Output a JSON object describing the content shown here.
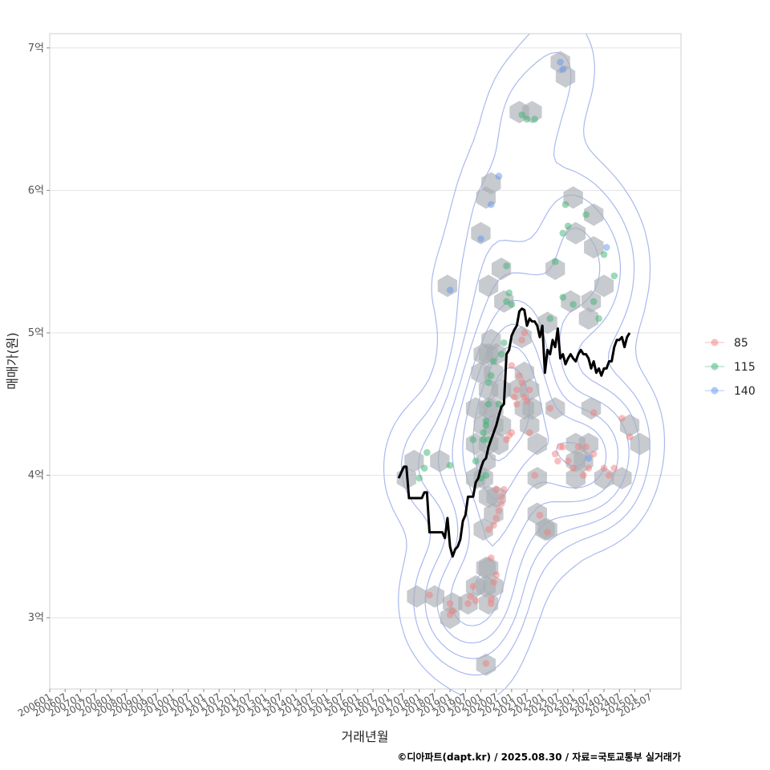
{
  "chart_data": {
    "type": "scatter",
    "title": "",
    "xlabel": "거래년월",
    "ylabel": "매매가(원)",
    "caption": "©디아파트(dapt.kr) / 2025.08.30 / 자료=국토교통부 실거래가",
    "x_range": [
      "2006-01",
      "2026-07"
    ],
    "ylim": [
      2.5,
      7.1
    ],
    "x_ticks": [
      "200601",
      "200607",
      "200701",
      "200707",
      "200801",
      "200807",
      "200901",
      "200907",
      "201001",
      "201007",
      "201101",
      "201107",
      "201201",
      "201207",
      "201301",
      "201307",
      "201401",
      "201407",
      "201501",
      "201507",
      "201601",
      "201607",
      "201701",
      "201707",
      "201801",
      "201807",
      "201901",
      "201907",
      "202001",
      "202007",
      "202101",
      "202107",
      "202201",
      "202207",
      "202301",
      "202307",
      "202401",
      "202407",
      "202501",
      "202507"
    ],
    "y_ticks": [
      {
        "value": 3,
        "label": "3억"
      },
      {
        "value": 4,
        "label": "4억"
      },
      {
        "value": 5,
        "label": "5억"
      },
      {
        "value": 6,
        "label": "6억"
      },
      {
        "value": 7,
        "label": "7억"
      }
    ],
    "grid": true,
    "legend_position": "right",
    "colors": {
      "85": "#f08080",
      "115": "#3cb371",
      "140": "#6495ed",
      "line": "#000000",
      "hex": "#a9adb3",
      "contour": "#8da2ea"
    },
    "series": [
      {
        "name": "85",
        "points": [
          [
            "2018-05",
            3.16
          ],
          [
            "2019-01",
            3.1
          ],
          [
            "2019-01",
            3.02
          ],
          [
            "2019-02",
            3.05
          ],
          [
            "2019-08",
            3.1
          ],
          [
            "2019-09",
            3.15
          ],
          [
            "2019-10",
            3.22
          ],
          [
            "2019-11",
            3.12
          ],
          [
            "2020-03",
            2.68
          ],
          [
            "2020-05",
            3.1
          ],
          [
            "2020-05",
            3.13
          ],
          [
            "2020-06",
            3.25
          ],
          [
            "2020-07",
            3.3
          ],
          [
            "2020-05",
            3.42
          ],
          [
            "2020-04",
            3.62
          ],
          [
            "2020-06",
            3.65
          ],
          [
            "2020-07",
            3.7
          ],
          [
            "2020-08",
            3.75
          ],
          [
            "2020-09",
            3.8
          ],
          [
            "2020-09",
            3.85
          ],
          [
            "2020-10",
            3.9
          ],
          [
            "2020-07",
            3.9
          ],
          [
            "2020-11",
            4.25
          ],
          [
            "2020-12",
            4.28
          ],
          [
            "2021-01",
            4.3
          ],
          [
            "2021-02",
            4.55
          ],
          [
            "2021-03",
            4.6
          ],
          [
            "2021-03",
            4.5
          ],
          [
            "2021-04",
            4.7
          ],
          [
            "2021-05",
            4.65
          ],
          [
            "2021-06",
            4.55
          ],
          [
            "2021-07",
            4.52
          ],
          [
            "2021-08",
            4.6
          ],
          [
            "2021-05",
            4.95
          ],
          [
            "2021-06",
            5.0
          ],
          [
            "2021-01",
            4.77
          ],
          [
            "2021-08",
            4.3
          ],
          [
            "2021-10",
            4.0
          ],
          [
            "2021-12",
            3.72
          ],
          [
            "2022-03",
            3.6
          ],
          [
            "2022-04",
            4.47
          ],
          [
            "2022-07",
            4.1
          ],
          [
            "2022-06",
            4.15
          ],
          [
            "2022-09",
            4.2
          ],
          [
            "2022-11",
            4.1
          ],
          [
            "2023-01",
            4.05
          ],
          [
            "2023-03",
            4.2
          ],
          [
            "2023-05",
            4.0
          ],
          [
            "2023-07",
            4.05
          ],
          [
            "2023-06",
            4.2
          ],
          [
            "2023-09",
            4.44
          ],
          [
            "2024-01",
            4.05
          ],
          [
            "2024-03",
            4.0
          ],
          [
            "2024-05",
            4.05
          ],
          [
            "2024-08",
            4.4
          ],
          [
            "2024-11",
            4.27
          ],
          [
            "2023-09",
            4.15
          ],
          [
            "2022-08",
            4.2
          ]
        ]
      },
      {
        "name": "115",
        "points": [
          [
            "2018-01",
            3.98
          ],
          [
            "2018-03",
            4.05
          ],
          [
            "2018-04",
            4.16
          ],
          [
            "2019-01",
            4.07
          ],
          [
            "2019-10",
            4.25
          ],
          [
            "2019-11",
            4.1
          ],
          [
            "2020-01",
            3.98
          ],
          [
            "2020-03",
            4.0
          ],
          [
            "2020-02",
            4.3
          ],
          [
            "2020-03",
            4.35
          ],
          [
            "2020-04",
            4.5
          ],
          [
            "2020-05",
            4.7
          ],
          [
            "2020-04",
            4.65
          ],
          [
            "2020-06",
            4.8
          ],
          [
            "2020-02",
            4.25
          ],
          [
            "2020-04",
            4.25
          ],
          [
            "2020-03",
            4.38
          ],
          [
            "2020-08",
            4.5
          ],
          [
            "2020-09",
            4.85
          ],
          [
            "2020-10",
            4.93
          ],
          [
            "2020-11",
            5.22
          ],
          [
            "2020-12",
            5.28
          ],
          [
            "2021-01",
            5.2
          ],
          [
            "2020-11",
            5.47
          ],
          [
            "2021-05",
            6.53
          ],
          [
            "2021-07",
            6.5
          ],
          [
            "2021-10",
            6.5
          ],
          [
            "2022-04",
            5.1
          ],
          [
            "2022-06",
            5.5
          ],
          [
            "2022-09",
            5.7
          ],
          [
            "2022-11",
            5.75
          ],
          [
            "2022-10",
            5.9
          ],
          [
            "2022-09",
            5.25
          ],
          [
            "2023-01",
            5.2
          ],
          [
            "2023-06",
            5.83
          ],
          [
            "2023-09",
            5.22
          ],
          [
            "2023-11",
            5.1
          ],
          [
            "2024-01",
            5.55
          ],
          [
            "2024-05",
            5.4
          ]
        ]
      },
      {
        "name": "140",
        "points": [
          [
            "2019-01",
            5.3
          ],
          [
            "2020-01",
            5.66
          ],
          [
            "2020-05",
            5.9
          ],
          [
            "2020-08",
            6.1
          ],
          [
            "2022-08",
            6.9
          ],
          [
            "2022-09",
            6.85
          ],
          [
            "2023-07",
            4.12
          ],
          [
            "2024-02",
            5.6
          ]
        ]
      }
    ],
    "median_line": [
      [
        "2017-05",
        3.98
      ],
      [
        "2017-06",
        4.02
      ],
      [
        "2017-07",
        4.06
      ],
      [
        "2017-08",
        4.06
      ],
      [
        "2017-09",
        3.84
      ],
      [
        "2017-10",
        3.84
      ],
      [
        "2017-11",
        3.84
      ],
      [
        "2017-12",
        3.84
      ],
      [
        "2018-01",
        3.84
      ],
      [
        "2018-02",
        3.84
      ],
      [
        "2018-03",
        3.88
      ],
      [
        "2018-04",
        3.88
      ],
      [
        "2018-05",
        3.6
      ],
      [
        "2018-06",
        3.6
      ],
      [
        "2018-07",
        3.6
      ],
      [
        "2018-08",
        3.6
      ],
      [
        "2018-09",
        3.6
      ],
      [
        "2018-10",
        3.6
      ],
      [
        "2018-11",
        3.56
      ],
      [
        "2018-12",
        3.7
      ],
      [
        "2019-01",
        3.5
      ],
      [
        "2019-02",
        3.43
      ],
      [
        "2019-03",
        3.48
      ],
      [
        "2019-04",
        3.5
      ],
      [
        "2019-05",
        3.55
      ],
      [
        "2019-06",
        3.68
      ],
      [
        "2019-07",
        3.72
      ],
      [
        "2019-08",
        3.85
      ],
      [
        "2019-09",
        3.85
      ],
      [
        "2019-10",
        3.85
      ],
      [
        "2019-11",
        3.95
      ],
      [
        "2019-12",
        3.98
      ],
      [
        "2020-01",
        4.05
      ],
      [
        "2020-02",
        4.1
      ],
      [
        "2020-03",
        4.12
      ],
      [
        "2020-04",
        4.2
      ],
      [
        "2020-05",
        4.25
      ],
      [
        "2020-06",
        4.3
      ],
      [
        "2020-07",
        4.35
      ],
      [
        "2020-08",
        4.42
      ],
      [
        "2020-09",
        4.48
      ],
      [
        "2020-10",
        4.5
      ],
      [
        "2020-11",
        4.85
      ],
      [
        "2020-12",
        4.88
      ],
      [
        "2021-01",
        4.98
      ],
      [
        "2021-02",
        5.02
      ],
      [
        "2021-03",
        5.05
      ],
      [
        "2021-04",
        5.15
      ],
      [
        "2021-05",
        5.17
      ],
      [
        "2021-06",
        5.16
      ],
      [
        "2021-07",
        5.05
      ],
      [
        "2021-08",
        5.1
      ],
      [
        "2021-09",
        5.08
      ],
      [
        "2021-10",
        5.08
      ],
      [
        "2021-11",
        5.05
      ],
      [
        "2021-12",
        4.97
      ],
      [
        "2022-01",
        5.05
      ],
      [
        "2022-02",
        4.72
      ],
      [
        "2022-03",
        4.88
      ],
      [
        "2022-04",
        4.85
      ],
      [
        "2022-05",
        4.95
      ],
      [
        "2022-06",
        4.9
      ],
      [
        "2022-07",
        5.03
      ],
      [
        "2022-08",
        4.82
      ],
      [
        "2022-09",
        4.85
      ],
      [
        "2022-10",
        4.78
      ],
      [
        "2022-11",
        4.82
      ],
      [
        "2022-12",
        4.85
      ],
      [
        "2023-01",
        4.82
      ],
      [
        "2023-02",
        4.8
      ],
      [
        "2023-03",
        4.85
      ],
      [
        "2023-04",
        4.88
      ],
      [
        "2023-05",
        4.85
      ],
      [
        "2023-06",
        4.85
      ],
      [
        "2023-07",
        4.82
      ],
      [
        "2023-08",
        4.75
      ],
      [
        "2023-09",
        4.8
      ],
      [
        "2023-10",
        4.72
      ],
      [
        "2023-11",
        4.75
      ],
      [
        "2023-12",
        4.7
      ],
      [
        "2024-01",
        4.75
      ],
      [
        "2024-02",
        4.75
      ],
      [
        "2024-03",
        4.8
      ],
      [
        "2024-04",
        4.8
      ],
      [
        "2024-05",
        4.9
      ],
      [
        "2024-06",
        4.95
      ],
      [
        "2024-07",
        4.95
      ],
      [
        "2024-08",
        4.97
      ],
      [
        "2024-09",
        4.9
      ],
      [
        "2024-10",
        4.97
      ],
      [
        "2024-11",
        5.0
      ]
    ],
    "hex_bins": [
      [
        "2022-08",
        6.9
      ],
      [
        "2022-10",
        6.8
      ],
      [
        "2021-04",
        6.55
      ],
      [
        "2021-09",
        6.55
      ],
      [
        "2020-05",
        6.05
      ],
      [
        "2020-03",
        5.95
      ],
      [
        "2023-01",
        5.95
      ],
      [
        "2020-01",
        5.7
      ],
      [
        "2023-02",
        5.7
      ],
      [
        "2023-09",
        5.83
      ],
      [
        "2023-09",
        5.6
      ],
      [
        "2018-12",
        5.33
      ],
      [
        "2020-04",
        5.33
      ],
      [
        "2020-09",
        5.45
      ],
      [
        "2022-06",
        5.45
      ],
      [
        "2024-01",
        5.33
      ],
      [
        "2020-10",
        5.22
      ],
      [
        "2022-12",
        5.22
      ],
      [
        "2023-08",
        5.22
      ],
      [
        "2022-03",
        5.07
      ],
      [
        "2023-07",
        5.1
      ],
      [
        "2021-05",
        4.97
      ],
      [
        "2020-05",
        4.95
      ],
      [
        "2020-02",
        4.85
      ],
      [
        "2020-04",
        4.85
      ],
      [
        "2020-07",
        4.85
      ],
      [
        "2020-01",
        4.72
      ],
      [
        "2020-06",
        4.72
      ],
      [
        "2021-06",
        4.72
      ],
      [
        "2020-04",
        4.6
      ],
      [
        "2020-09",
        4.6
      ],
      [
        "2021-03",
        4.6
      ],
      [
        "2021-08",
        4.6
      ],
      [
        "2019-11",
        4.47
      ],
      [
        "2020-04",
        4.47
      ],
      [
        "2020-06",
        4.47
      ],
      [
        "2021-06",
        4.47
      ],
      [
        "2021-09",
        4.47
      ],
      [
        "2022-06",
        4.47
      ],
      [
        "2023-08",
        4.47
      ],
      [
        "2020-02",
        4.35
      ],
      [
        "2020-06",
        4.35
      ],
      [
        "2020-09",
        4.35
      ],
      [
        "2021-08",
        4.35
      ],
      [
        "2024-11",
        4.35
      ],
      [
        "2019-11",
        4.22
      ],
      [
        "2020-04",
        4.22
      ],
      [
        "2020-08",
        4.22
      ],
      [
        "2021-11",
        4.22
      ],
      [
        "2023-02",
        4.22
      ],
      [
        "2023-07",
        4.22
      ],
      [
        "2025-03",
        4.22
      ],
      [
        "2017-11",
        4.1
      ],
      [
        "2018-09",
        4.1
      ],
      [
        "2020-03",
        4.1
      ],
      [
        "2023-02",
        4.1
      ],
      [
        "2023-05",
        4.1
      ],
      [
        "2017-08",
        3.98
      ],
      [
        "2019-11",
        3.98
      ],
      [
        "2020-02",
        3.98
      ],
      [
        "2021-11",
        3.98
      ],
      [
        "2023-02",
        3.98
      ],
      [
        "2024-01",
        3.98
      ],
      [
        "2024-08",
        3.98
      ],
      [
        "2020-04",
        3.85
      ],
      [
        "2020-07",
        3.85
      ],
      [
        "2020-06",
        3.73
      ],
      [
        "2021-11",
        3.73
      ],
      [
        "2022-02",
        3.62
      ],
      [
        "2020-02",
        3.62
      ],
      [
        "2020-03",
        3.35
      ],
      [
        "2020-04",
        3.35
      ],
      [
        "2019-11",
        3.22
      ],
      [
        "2020-03",
        3.22
      ],
      [
        "2020-06",
        3.22
      ],
      [
        "2017-12",
        3.15
      ],
      [
        "2018-07",
        3.15
      ],
      [
        "2019-02",
        3.1
      ],
      [
        "2019-08",
        3.1
      ],
      [
        "2020-04",
        3.1
      ],
      [
        "2019-01",
        3.0
      ],
      [
        "2020-03",
        2.67
      ],
      [
        "2022-03",
        3.62
      ]
    ]
  }
}
